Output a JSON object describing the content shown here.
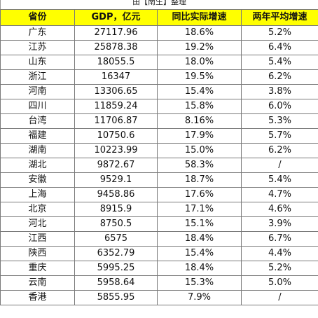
{
  "caption": "由【南生】整理",
  "headers": [
    "省份",
    "GDP，亿元",
    "同比实际增速",
    "两年平均增速"
  ],
  "rows": [
    {
      "province": "广东",
      "gdp": "27117.96",
      "yoy": "18.6%",
      "avg2y": "5.2%"
    },
    {
      "province": "江苏",
      "gdp": "25878.38",
      "yoy": "19.2%",
      "avg2y": "6.4%"
    },
    {
      "province": "山东",
      "gdp": "18055.5",
      "yoy": "18.0%",
      "avg2y": "5.4%"
    },
    {
      "province": "浙江",
      "gdp": "16347",
      "yoy": "19.5%",
      "avg2y": "6.2%"
    },
    {
      "province": "河南",
      "gdp": "13306.65",
      "yoy": "15.4%",
      "avg2y": "3.8%"
    },
    {
      "province": "四川",
      "gdp": "11859.24",
      "yoy": "15.8%",
      "avg2y": "6.0%"
    },
    {
      "province": "台湾",
      "gdp": "11706.87",
      "yoy": "8.16%",
      "avg2y": "5.3%"
    },
    {
      "province": "福建",
      "gdp": "10750.6",
      "yoy": "17.9%",
      "avg2y": "5.7%"
    },
    {
      "province": "湖南",
      "gdp": "10223.99",
      "yoy": "15.0%",
      "avg2y": "6.2%"
    },
    {
      "province": "湖北",
      "gdp": "9872.67",
      "yoy": "58.3%",
      "avg2y": "/"
    },
    {
      "province": "安徽",
      "gdp": "9529.1",
      "yoy": "18.7%",
      "avg2y": "5.4%"
    },
    {
      "province": "上海",
      "gdp": "9458.86",
      "yoy": "17.6%",
      "avg2y": "4.7%"
    },
    {
      "province": "北京",
      "gdp": "8915.9",
      "yoy": "17.1%",
      "avg2y": "4.6%"
    },
    {
      "province": "河北",
      "gdp": "8750.5",
      "yoy": "15.1%",
      "avg2y": "3.9%"
    },
    {
      "province": "江西",
      "gdp": "6575",
      "yoy": "18.4%",
      "avg2y": "6.7%"
    },
    {
      "province": "陕西",
      "gdp": "6352.79",
      "yoy": "15.4%",
      "avg2y": "4.4%"
    },
    {
      "province": "重庆",
      "gdp": "5995.25",
      "yoy": "18.4%",
      "avg2y": "5.2%"
    },
    {
      "province": "云南",
      "gdp": "5958.64",
      "yoy": "15.3%",
      "avg2y": "5.0%"
    },
    {
      "province": "香港",
      "gdp": "5855.95",
      "yoy": "7.9%",
      "avg2y": "/"
    }
  ],
  "colors": {
    "header_background": "#ffff00",
    "border": "#7a7a7a"
  }
}
